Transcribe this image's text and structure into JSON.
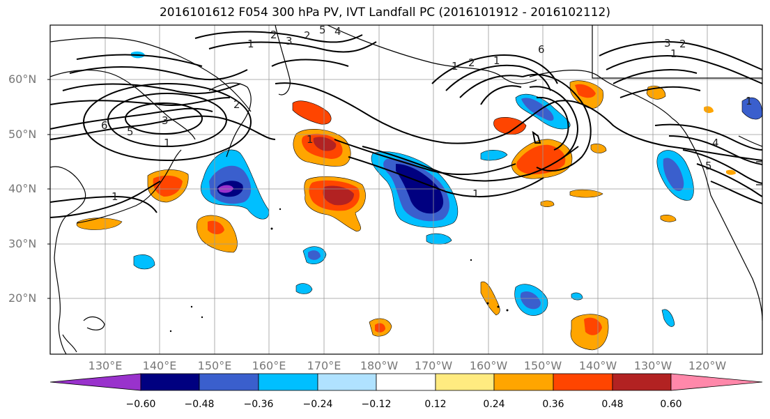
{
  "title": "2016101612 F054 300 hPa PV, IVT Landfall PC (2016101912 - 2016102112)",
  "lat_labels": [
    "60°N",
    "50°N",
    "40°N",
    "30°N",
    "20°N"
  ],
  "lon_labels": [
    "130°E",
    "140°E",
    "150°E",
    "160°E",
    "170°E",
    "180°W",
    "170°W",
    "160°W",
    "150°W",
    "140°W",
    "130°W",
    "120°W"
  ],
  "colorbar": {
    "ticks": [
      "−0.60",
      "−0.48",
      "−0.36",
      "−0.24",
      "−0.12",
      "0.12",
      "0.24",
      "0.36",
      "0.48",
      "0.60"
    ],
    "colors": [
      "#9932cc",
      "#000080",
      "#3a5fcd",
      "#00bfff",
      "#b0e2ff",
      "#ffffff",
      "#ffeb80",
      "#ffa500",
      "#ff4500",
      "#b22222",
      "#ff88aa"
    ]
  },
  "contour_labels": [
    "1",
    "2",
    "3",
    "5",
    "6",
    "1",
    "2",
    "1",
    "4",
    "5",
    "3",
    "2",
    "1",
    "1",
    "2",
    "1",
    "6",
    "1",
    "3",
    "2",
    "1",
    "4",
    "5",
    "1"
  ]
}
